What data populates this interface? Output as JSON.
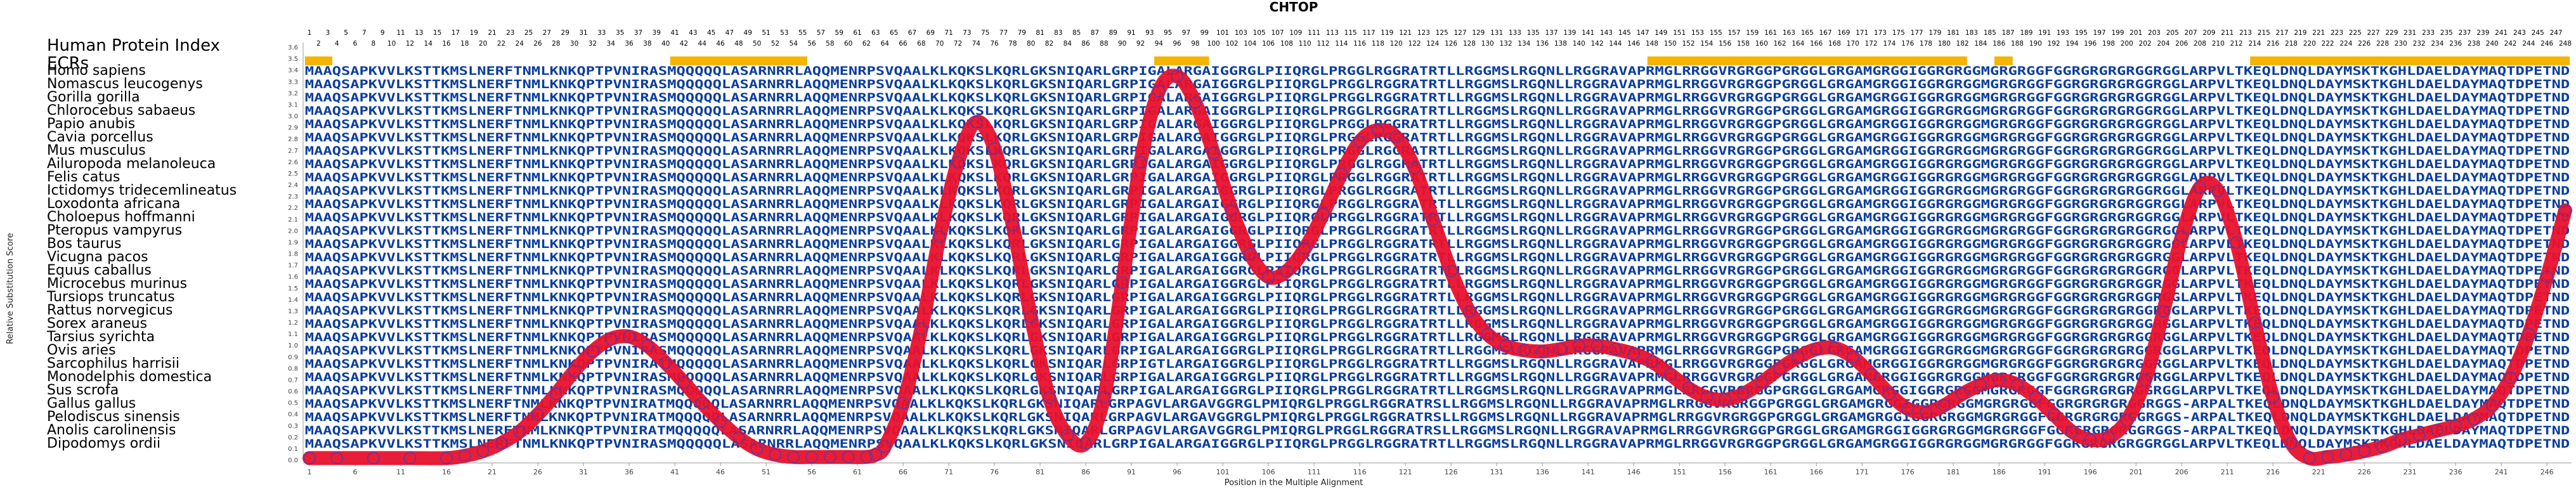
{
  "chart_data": {
    "type": "line",
    "title": "CHTOP",
    "xlabel": "Position in the Multiple Alignment",
    "ylabel": "Relative Substitution Score",
    "ylim": [
      0,
      3.6
    ],
    "xlim": [
      1,
      248
    ],
    "y_ticks": [
      "0.0",
      "0.1",
      "0.2",
      "0.3",
      "0.4",
      "0.5",
      "0.6",
      "0.7",
      "0.8",
      "0.9",
      "1.0",
      "1.1",
      "1.2",
      "1.3",
      "1.4",
      "1.5",
      "1.6",
      "1.7",
      "1.8",
      "1.9",
      "2.0",
      "2.1",
      "2.2",
      "2.3",
      "2.4",
      "2.5",
      "2.6",
      "2.7",
      "2.8",
      "2.9",
      "3.0",
      "3.1",
      "3.2",
      "3.3",
      "3.4",
      "3.5",
      "3.6"
    ],
    "x_ticks": [
      1,
      6,
      11,
      16,
      21,
      26,
      31,
      36,
      41,
      46,
      51,
      56,
      61,
      66,
      71,
      76,
      81,
      86,
      91,
      96,
      101,
      106,
      111,
      116,
      121,
      126,
      131,
      136,
      141,
      146,
      151,
      156,
      161,
      166,
      171,
      176,
      181,
      186,
      191,
      196,
      201,
      206,
      211,
      216,
      221,
      226,
      231,
      236,
      241,
      246
    ],
    "header_label": "Human Protein Index",
    "ecr_label": "ECRs",
    "ecr_regions": [
      [
        1,
        3
      ],
      [
        41,
        55
      ],
      [
        94,
        99
      ],
      [
        148,
        182
      ],
      [
        186,
        187
      ],
      [
        214,
        248
      ]
    ],
    "species": [
      "Homo sapiens",
      "Nomascus leucogenys",
      "Gorilla gorilla",
      "Chlorocebus sabaeus",
      "Papio anubis",
      "Cavia porcellus",
      "Mus musculus",
      "Ailuropoda melanoleuca",
      "Felis catus",
      "Ictidomys tridecemlineatus",
      "Loxodonta africana",
      "Choloepus hoffmanni",
      "Pteropus vampyrus",
      "Bos taurus",
      "Vicugna pacos",
      "Equus caballus",
      "Microcebus murinus",
      "Tursiops truncatus",
      "Rattus norvegicus",
      "Sorex araneus",
      "Tarsius syrichta",
      "Ovis aries",
      "Sarcophilus harrisii",
      "Monodelphis domestica",
      "Sus scrofa",
      "Gallus gallus",
      "Pelodiscus sinensis",
      "Anolis carolinensis",
      "Dipodomys ordii"
    ],
    "alignments": [
      "MAAQSAPKVVLKSTTKMSLNERFTNMLKNKQPTPVNIRASMQQQQQLASARNRRLAQQMENRPSVQAALKLKQKSLKQRLGKSNIQARLGRPIGALARGAIGGRGLPIIQRGLPRGGLRGGRATRTLLRGGMSLRGQNLLRGGRAVAPRMGLRRGGVRGRGGPGRGGLGRGAMGRGGIGGRGRGGMGRGRGGFGGRGRGRGRGGRGGLARPVLTKEQLDNQLDAYMSKTKGHLDAELDAYMAQTDPETND",
      "MAAQSAPKVVLKSTTKMSLNERFTNMLKNKQPTPVNIRASMQQQQQLASARNRRLAQQMENRPSVQAALKLKQKSLKQRLGKSNIQARLGRPIGALARGAIGGRGLPIIQRGLPRGGLRGGRATRTLLRGGMSLRGQNLLRGGRAVAPRMGLRRGGVRGRGGPGRGGLGRGAMGRGGIGGRGRGGMGRGRGGFGGRGRGRGRGGRGGLARPVLTKEQLDNQLDAYMSKTKGHLDAELDAYMAQTDPETND",
      "MAAQSAPKVVLKSTTKMSLNERFTNMLKNKQPTPVNIRASMQQQQQLASARNRRLAQQMENRPSVQAALKLKQKSLKQRLGKSNIQARLGRPIGALARGAIGGRGLPIIQRGLPRGGLRGGRATRTLLRGGMSLRGQNLLRGGRAVAPRMGLRRGGVRGRGGPGRGGLGRGAMGRGGIGGRGRGGMGRGRGGFGGRGRGRGRGGRGGLARPVLTKEQLDNQLDAYMSKTKGHLDAELDAYMAQTDPETND",
      "MAAQSAPKVVLKSTTKMSLNERFTNMLKNKQPTPVNIRASMQQQQQLASARNRRLAQQMENRPSVQAALKLKQKSLKQRLGKSNIQARLGRPIGALARGAIGGRGLPIIQRGLPRGGLRGGRATRTLLRGGMSLRGQNLLRGGRAVAPRMGLRRGGVRGRGGPGRGGLGRGAMGRGGIGGRGRGGMGRGRGGFGGRGRGRGRGGRGGLARPVLTKEQLDNQLDAYMSKTKGHLDAELDAYMAQTDPETND",
      "MAAQSAPKVVLKSTTKMSLNERFTNMLKNKQPTPVNIRASMQQQQQLASARNRRLAQQMENRPSVQAALKLKQKSLKQRLGKSNIQARLGRPIGALARGAIGGRGLPIIQRGLPRGGLRGGRATRTLLRGGMSLRGQNLLRGGRAVAPRMGLRRGGVRGRGGPGRGGLGRGAMGRGGIGGRGRGGMGRGRGGFGGRGRGRGRGGRGGLARPVLTKEQLDNQLDAYMSKTKGHLDAELDAYMAQTDPETND",
      "MAAQSAPKVVLKSTTKMSLNERFTNMLKNKQPTPVNIRASMQQQQQLASARNRRLAQQMENRPSVQAALKLKQKSLKQRLGKSNIQARLGRPIGALARGAIGGRGLPIIQRGLPRGGLRGGRATRTLLRGGMSLRGQNLLRGGRAVAPRMGLRRGGVRGRGGPGRGGLGRGAMGRGGIGGRGRGGMGRGRGGFGGRGRGRGRGGRGGLARPVLTKEQLDNQLDAYMSKTKGHLDAELDAYMAQTDPETND",
      "MAAQSAPKVVLKSTTKMSLNERFTNMLKNKQPTPVNIRASMQQQQQLASARNRRLAQQMENRPSVQAALKLKQKSLKQRLGKSNIQARLGRPIGALARGAIGGRGLPIIQRGLPRGGLRGGRATRTLLRGGMSLRGQNLLRGGRAVAPRMGLRRGGVRGRGGPGRGGLGRGAMGRGGIGGRGRGGMGRGRGGFGGRGRGRGRGGRGGLARPVLTKEQLDNQLDAYMSKTKGHLDAELDAYMAQTDPETND",
      "MAAQSAPKVVLKSTTKMSLNERFTNMLKNKQPTPVNIRASMQQQQQLASARNRRLAQQMENRPSVQAALKLKQKSLKQRLGKSNIQARLGRPIGALARGAIGGRGLPIIQRGLPRGGLRGGRATRTLLRGGMSLRGQNLLRGGRAVAPRMGLRRGGVRGRGGPGRGGLGRGAMGRGGIGGRGRGGMGRGRGGFGGRGRGRGRGGRGGLARPVLTKEQLDNQLDAYMSKTKGHLDAELDAYMAQTDPETND",
      "MAAQSAPKVVLKSTTKMSLNERFTNMLKNKQPTPVNIRASMQQQQQLASARNRRLAQQMENRPSVQAALKLKQKSLKQRLGKSNIQARLGRPIGALARGAIGGRGLPIIQRGLPRGGLRGGRATRTLLRGGMSLRGQNLLRGGRAVAPRMGLRRGGVRGRGGPGRGGLGRGAMGRGGIGGRGRGGMGRGRGGFGGRGRGRGRGGRGGLARPVLTKEQLDNQLDAYMSKTKGHLDAELDAYMAQTDPETND",
      "MAAQSAPKVVLKSTTKMSLNERFTNMLKNKQPTPVNIRASMQQQQQLASARNRRLAQQMENRPSVQAALKLKQKSLKQRLGKSNIQARLGRPIGALARGAIGGRGLPIIQRGLPRGGLRGGRATRTLLRGGMSLRGQNLLRGGRAVAPRMGLRRGGVRGRGGPGRGGLGRGAMGRGGIGGRGRGGMGRGRGGFGGRGRGRGRGGRGGLARPVLTKEQLDNQLDAYMSKTKGHLDAELDAYMAQTDPETND",
      "MAAQSAPKVVLKSTTKMSLNERFTNMLKNKQPTPVNIRASMQQQQQLASARNRRLAQQMENRPSVQAALKLKQKSLKQRLGKSNIQARLGRPIGALARGAIGGRGLPIIQRGLPRGGLRGGRATRTLLRGGMSLRGQNLLRGGRAVAPRMGLRRGGVRGRGGPGRGGLGRGAMGRGGIGGRGRGGMGRGRGGFGGRGRGRGRGGRGGLARPVLTKEQLDNQLDAYMSKTKGHLDAELDAYMAQTDPETND",
      "MAAQSAPKVVLKSTTKMSLNERFTNMLKNKQPTPVNIRASMQQQQQLASARNRRLAQQMENRPSVQAALKLKQKSLKQRLGKSNIQARLGRPIGALARGAIGGRGLPIIQRGLPRGGLRGGRATRTLLRGGMSLRGQNLLRGGRAVAPRMGLRRGGVRGRGGPGRGGLGRGAMGRGGIGGRGRGGMGRGRGGFGGRGRGRGRGGRGGLARPVLTKEQLDNQLDAYMSKTKGHLDAELDAYMAQTDPETND",
      "MAAQSAPKVVLKSTTKMSLNERFTNMLKNKQPTPVNIRASMQQQQQLASARNRRLAQQMENRPSVQAALKLKQKSLKQRLGKSNIQARLGRPIGALARGAIGGRGLPIIQRGLPRGGLRGGRATRTLLRGGMSLRGQNLLRGGRAVAPRMGLRRGGVRGRGGPGRGGLGRGAMGRGGIGGRGRGGMGRGRGGFGGRGRGRGRGGRGGLARPVLTKEQLDNQLDAYMSKTKGHLDAELDAYMAQTDPETND",
      "MAAQSAPKVVLKSTTKMSLNERFTNMLKNKQPTPVNIRASMQQQQQLASARNRRLAQQMENRPSVQAALKLKQKSLKQRLGKSNIQARLGRPIGALARGAIGGRGLPIIQRGLPRGGLRGGRATRTLLRGGMSLRGQNLLRGGRAVAPRMGLRRGGVRGRGGPGRGGLGRGAMGRGGIGGRGRGGMGRGRGGFGGRGRGRGRGGRGGLARPVLTKEQLDNQLDAYMSKTKGHLDAELDAYMAQTDPETND",
      "MAAQSAPKVVLKSTTKMSLNERFTNMLKNKQPTPVNIRASMQQQQQLASARNRRLAQQMENRPSVQAALKLKQKSLKQRLGKSNIQARLGRPIGALARGAIGGRGLPIIQRGLPRGGLRGGRATRTLLRGGMSLRGQNLLRGGRAVAPRMGLRRGGVRGRGGPGRGGLGRGAMGRGGIGGRGRGGMGRGRGGFGGRGRGRGRGGRGGLARPVLTKEQLDNQLDAYMSKTKGHLDAELDAYMAQTDPETND",
      "MAAQSAPKVVLKSTTKMSLNERFTNMLKNKQPTPVNIRASMQQQQQLASARNRRLAQQMENRPSVQAALKLKQKSLKQRLGKSNIQARLGRPIGALARGAIGGRGLPIIQRGLPRGGLRGGRATRTLLRGGMSLRGQNLLRGGRAVAPRMGLRRGGVRGRGGPGRGGLGRGAMGRGGIGGRGRGGMGRGRGGFGGRGRGRGRGGRGGLARPVLTKEQLDNQLDAYMSKTKGHLDAELDAYMAQTDPETND",
      "MAAQSAPKVVLKSTTKMSLNERFTNMLKNKQPTPVNIRASMQQQQQLASARNRRLAQQMENRPSVQAALKLKQKSLKQRLGKSNIQARLGRPIGALARGAIGGRGLPIIQRGLPRGGLRGGRATRTLLRGGMSLRGQNLLRGGRAVAPRMGLRRGGVRGRGGPGRGGLGRGAMGRGGIGGRGRGGMGRGRGGFGGRGRGRGRGGRGGLARPVLTKEQLDNQLDAYMSKTKGHLDAELDAYMAQTDPETND",
      "MAAQSAPKVVLKSTTKMSLNERFTNMLKNKQPTPVNIRASMQQQQQLASARNRRLAQQMENRPSVQAALKLKQKSLKQRLGKSNIQARLGRPIGALARGAIGGRGLPIIQRGLPRGGLRGGRATRTLLRGGMSLRGQNLLRGGRAVAPRMGLRRGGVRGRGGPGRGGLGRGAMGRGGIGGRGRGGMGRGRGGFGGRGRGRGRGGRGGLARPVLTKEQLDNQLDAYMSKTKGHLDAELDAYMAQTDPETND",
      "MAAQSAPKVVLKSTTKMSLNERFTNMLKNKQPTPVNIRASMQQQQQLASARNRRLAQQMENRPSVQAALKLKQKSLKQRLGKSNIQARLGRPIGALARGAIGGRGLPIIQRGLPRGGLRGGRATRTLLRGGMSLRGQNLLRGGRAVAPRMGLRRGGVRGRGGPGRGGLGRGAMGRGGIGGRGRGGMGRGRGGFGGRGRGRGRGGRGGLARPVLTKEQLDNQLDAYMSKTKGHLDAELDAYMAQTDPETND",
      "MAAQSAPKVVLKSTTKMSLNERFTNMLKNKQPTPVNIRASMQQQQQLASARNRRLAQQMENRPSVQAALKLKQKSLKQRLGKSNIQARLGRPIGALARGAIGGRGLPIIQRGLPRGGLRGGRATRTLLRGGMSLRGQNLLRGGRAVAPRMGLRRGGVRGRGGPGRGGLGRGAMGRGGIGGRGRGGMGRGRGGFGGRGRGRGRGGRGGLARPVLTKEQLDNQLDAYMSKTKGHLDAELDAYMAQTDPETND",
      "MAAQSAPKVVLKSTTKMSLNERFTNMLKNKQPTPVNIRASMQQQQQLASARNRRLAQQMENRPSVQAALKLKQKSLKQRLGKSNIQARLGRPIGALARGAIGGRGLPIIQRGLPRGGLRGGRATRTLLRGGMSLRGQNLLRGGRAVAPRMGLRRGGVRGRGGPGRGGLGRGAMGRGGIGGRGRGGMGRGRGGFGGRGRGRGRGGRGGLARPVLTKEQLDNQLDAYMSKTKGHLDAELDAYMAQTDPETND",
      "MAAQSAPKVVLKSTTKMSLNERFTNMLKNKQPTPVNIRASMQQQQQLASARNRRLAQQMENRPSVQAALKLKQKSLKQRLGKSNIQARLGRPIGALARGAIGGRGLPIIQRGLPRGGLRGGRATRTLLRGGMSLRGQNLLRGGRAVAPRMGLRRGGVRGRGGPGRGGLGRGAMGRGGIGGRGRGGMGRGRGGFGGRGRGRGRGGRGGLARPVLTKEQLDNQLDAYMSKTKGHLDAELDAYMAQTDPETND",
      "MAAQSAPKVVLKSTTKMSLNERFTNMLKNKQPTPVNIRATMQQQQQLASARNRRLAQQMENRPSVQAALKLKQKSLKQRLGKSNIQARLGRPIGTLARGAIGGRGLPIIQRGLPRGGLRGGRATRTLLRGGMSLRGQNLLRGGRAVAPRMGLRRGGVRGRGGPGRGGLGRGAMGRGGIGGRGRGGMGRGRGGFGGRGRGRGRGGRGGLARPVLTKEQLDNQLDAYMSKTKGHLDAELDAYMAQTDPETND",
      "MAAQSAPKVVLKSTTKMSLNERFTNMLKNKQPTPVNIRASMQQQQQLASARNRRLAQQMENRPSVQAALKLKQKSLKQRLGKSNIQARLGRPIGALARGAIGGRGLPIIQRGLPRGGLRGGRATRTLLRGGMSLRGQNLLRGGRAVAPRMGLRRGGVRGRGGPGRGGLGRGAMGRGGIGGRGRGGMGRGRGGFGGRGRGRGRGGRGGLARPVLTKEQLDNQLDAYMSKTKGHLDAELDAYMAQTDPETND",
      "MAAQSAPKVVLKSTTKMSLNERFTNMLKNKQPTPVNIRASMQQQQQLASARNRRLAQQMENRPSVQAALKLKQKSLKQRLGKSNIQARLGRPIGALARGAIGGRGLPIIQRGLPRGGLRGGRATRTLLRGGMSLRGQNLLRGGRAVAPRMGLRRGGVRGRGGPGRGGLGRGAMGRGGIGGRGRGGMGRGRGGFGGRGRGRGRGGRGGLARPVLTKEQLDNQLDAYMSKTKGHLDAELDAYMAQTDPETND",
      "MAAQSAPKVVLKSTTKMSLNERFTNMLKNKQPTPVNIRATMQQQQQLASARNRRLAQQMENRPSVQAALKLKQKSLKQRLGKSNIQARLGRPAGVLARGAVGGRGLPMIQRGLPRGGLRGGRATRSLLRGGMSLRGQNLLRGGRAVAPRMGLRRGGVRGRGGPGRGGLGRGAMGRGGIGGRGRGGMGRGRGGFGGRGRGRGRGGRGGS-ARPALTKEQLDNQLDAYMSKTKGHLDAELDAYMAQTDPETND",
      "MAAQSAPKVVLKSTTKMSLNERFTNMLKNKQPTPVNIRATMQQQQQLASARNRRLAQQMENRPSVQAALKLKQKSLKQRLGKSNIQARLGRPAGVLARGAVGGRGLPMIQRGLPRGGLRGGRATRSLLRGGMSLRGQNLLRGGRAVAPRMGLRRGGVRGRGGPGRGGLGRGAMGRGGIGGRGRGGMGRGRGGFGGRGRGRGRGGRGGS-ARPALTKEQLDNQLDAYMSKTKGHLDAELDAYMAQTDPETND",
      "MAAQSAPKVVLKSTTKMSLNERFTNMLKNKQPTPVNIRATMQQQQQLASARNRRLAQQMENRPSVQAALKLKQKSLKQRLGKSNIQARLGRPAGVLARGAVGGRGLPMIQRGLPRGGLRGGRATRSLLRGGMSLRGQNLLRGGRAVAPRMGLRRGGVRGRGGPGRGGLGRGAMGRGGIGGRGRGGMGRGRGGFGGRGRGRGRGGRGGS-ARPALTKEQLDNQLDAYMSKTKGHLDAELDAYMAQTDPETND",
      "MAAQSAPKVVLKSTTKMSLNERFTNMLKNKQPTPVNIRASMQQQQQLASARNRRLAQQMENRPSVQAALKLKQKSLKQRLGKSNIQARLGRPIGALARGAIGGRGLPIIQRGLPRGGLRGGRATRTLLRGGMSLRGQNLLRGGRAVAPRMGLRRGGVRGRGGPGRGGLGRGAMGRGGIGGRGRGGMGRGRGGFGGRGRGRGRGGRGGLARPVLTKEQLDNQLDAYMSKTKGHLDAELDAYMAQTDPETND"
    ],
    "series": [
      {
        "x": [
          1,
          4,
          8,
          12,
          16,
          18,
          20,
          22,
          24,
          26,
          28,
          30,
          32,
          34,
          36,
          38,
          40,
          42,
          44,
          46,
          48,
          50,
          52,
          54,
          56,
          58,
          60,
          62,
          63,
          64,
          66,
          68,
          70,
          72,
          74,
          76,
          78,
          80,
          82,
          84,
          86,
          88,
          90,
          92,
          94,
          96,
          98,
          100,
          102,
          104,
          106,
          108,
          110,
          112,
          114,
          116,
          118,
          120,
          122,
          124,
          126,
          128,
          130,
          132,
          134,
          136,
          138,
          140,
          142,
          144,
          146,
          148,
          150,
          152,
          154,
          156,
          158,
          160,
          162,
          164,
          166,
          168,
          170,
          172,
          174,
          176,
          178,
          180,
          182,
          184,
          186,
          188,
          190,
          192,
          194,
          196,
          198,
          200,
          202,
          204,
          206,
          208,
          210,
          212,
          214,
          216,
          218,
          220,
          222,
          224,
          226,
          228,
          230,
          232,
          234,
          236,
          238,
          240,
          242,
          244,
          246,
          248
        ],
        "y": [
          0.02,
          0.02,
          0.02,
          0.02,
          0.02,
          0.04,
          0.08,
          0.15,
          0.25,
          0.4,
          0.58,
          0.78,
          0.95,
          1.06,
          1.08,
          1.0,
          0.85,
          0.68,
          0.5,
          0.34,
          0.2,
          0.1,
          0.05,
          0.03,
          0.03,
          0.03,
          0.03,
          0.03,
          0.05,
          0.12,
          0.5,
          1.15,
          1.95,
          2.6,
          2.95,
          2.72,
          2.05,
          1.25,
          0.55,
          0.22,
          0.15,
          0.55,
          1.55,
          2.6,
          3.22,
          3.35,
          3.12,
          2.68,
          2.18,
          1.8,
          1.6,
          1.65,
          1.85,
          2.15,
          2.5,
          2.78,
          2.88,
          2.82,
          2.55,
          2.1,
          1.65,
          1.3,
          1.1,
          1.0,
          0.96,
          0.95,
          0.97,
          1.0,
          1.0,
          0.97,
          0.93,
          0.86,
          0.75,
          0.63,
          0.55,
          0.53,
          0.58,
          0.68,
          0.8,
          0.9,
          0.97,
          0.98,
          0.9,
          0.75,
          0.58,
          0.45,
          0.42,
          0.48,
          0.58,
          0.66,
          0.7,
          0.66,
          0.55,
          0.4,
          0.25,
          0.18,
          0.2,
          0.35,
          0.7,
          1.3,
          1.95,
          2.38,
          2.35,
          1.9,
          1.2,
          0.55,
          0.15,
          0.02,
          0.03,
          0.05,
          0.08,
          0.12,
          0.18,
          0.22,
          0.26,
          0.3,
          0.36,
          0.48,
          0.72,
          1.1,
          1.6,
          2.18
        ]
      }
    ],
    "colors": {
      "line": "#e8112d",
      "marker": "#2b41c6",
      "alignment_text": "#0a3d9e",
      "ecr_bar": "#f5b400",
      "position_numbers": "#000000"
    }
  }
}
